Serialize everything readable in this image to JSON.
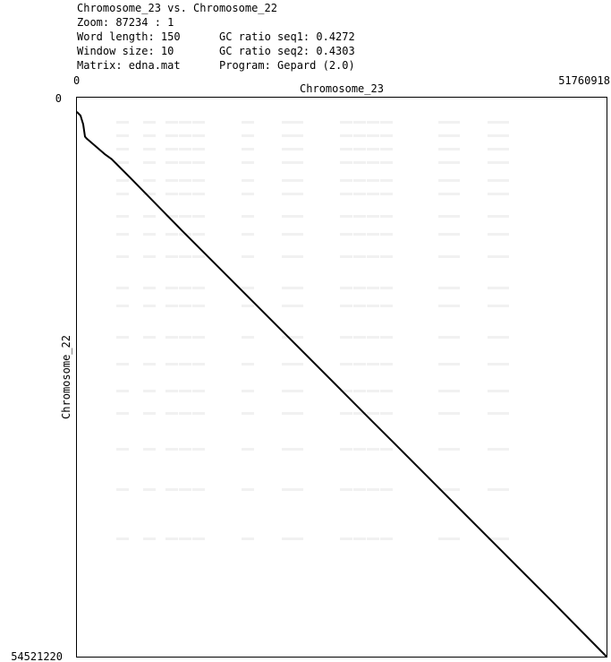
{
  "header": {
    "title": "Chromosome_23 vs. Chromosome_22",
    "zoom_label": "Zoom: 87234 : 1",
    "word_length_label": "Word length: 150",
    "window_size_label": "Window size: 10",
    "matrix_label": "Matrix: edna.mat",
    "gc_seq1_label": "GC ratio seq1: 0.4272",
    "gc_seq2_label": "GC ratio seq2: 0.4303",
    "program_label": "Program: Gepard (2.0)"
  },
  "chart_data": {
    "type": "scatter",
    "title": "Chromosome_23 vs. Chromosome_22",
    "xlabel": "Chromosome_23",
    "ylabel": "Chromosome_22",
    "xlim": [
      0,
      51760918
    ],
    "ylim": [
      0,
      54521220
    ],
    "x_ticks": [
      "0",
      "51760918"
    ],
    "y_ticks": [
      "0",
      "54521220"
    ],
    "y_axis_direction": "top-to-bottom",
    "grid": false,
    "line_color": "#000000",
    "series": [
      {
        "x": [
          0,
          349000,
          610000,
          698000,
          785000,
          960000,
          2700000,
          3400000,
          5200000,
          10300000,
          15500000,
          20700000,
          25900000,
          28700000,
          31000000,
          36200000,
          41400000,
          46600000,
          51760918
        ],
        "y": [
          1400000,
          1750000,
          2600000,
          3200000,
          3800000,
          4000000,
          5500000,
          6000000,
          7800000,
          13000000,
          18200000,
          23400000,
          28600000,
          31400000,
          33700000,
          38900000,
          44100000,
          49300000,
          54521220
        ]
      }
    ]
  }
}
